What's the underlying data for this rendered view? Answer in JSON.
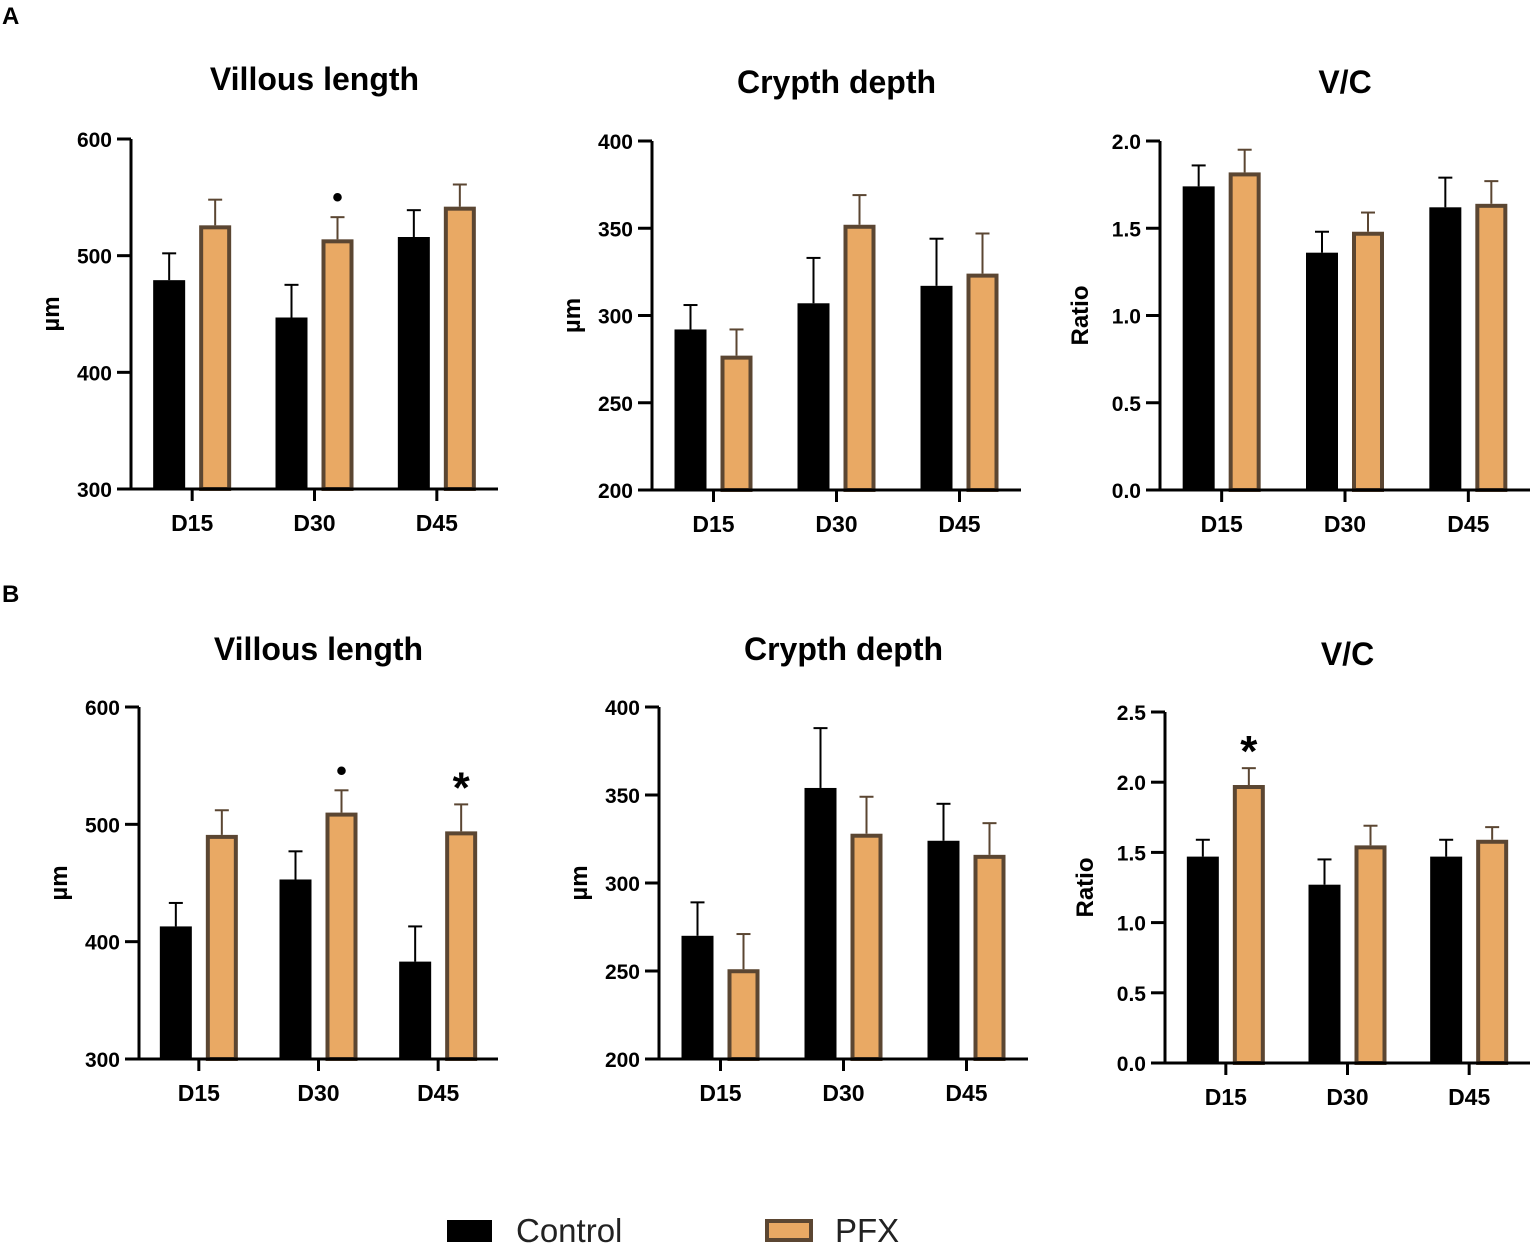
{
  "colors": {
    "control": "#000000",
    "pfx_fill": "#E9A964",
    "pfx_edge": "#5B4632",
    "axis": "#000000"
  },
  "panel_labels": [
    "A",
    "B"
  ],
  "legend": {
    "control": "Control",
    "pfx": "PFX"
  },
  "chart_data": [
    {
      "id": "A1",
      "panel": "A",
      "type": "bar",
      "title": "Villous length",
      "ylabel": "µm",
      "categories": [
        "D15",
        "D30",
        "D45"
      ],
      "ylim": [
        300,
        600
      ],
      "yticks": [
        300,
        400,
        500,
        600
      ],
      "ytick_labels": [
        "300",
        "400",
        "500",
        "600"
      ],
      "series": [
        {
          "name": "Control",
          "values": [
            479,
            447,
            516
          ],
          "errors": [
            23,
            28,
            23
          ]
        },
        {
          "name": "PFX",
          "values": [
            526,
            514,
            542
          ],
          "errors": [
            22,
            19,
            19
          ]
        }
      ],
      "annotations": [
        {
          "category_index": 1,
          "series_index": 1,
          "symbol": "•"
        }
      ]
    },
    {
      "id": "A2",
      "panel": "A",
      "type": "bar",
      "title": "Crypth depth",
      "ylabel": "µm",
      "categories": [
        "D15",
        "D30",
        "D45"
      ],
      "ylim": [
        200,
        400
      ],
      "yticks": [
        200,
        250,
        300,
        350,
        400
      ],
      "ytick_labels": [
        "200",
        "250",
        "300",
        "350",
        "400"
      ],
      "series": [
        {
          "name": "Control",
          "values": [
            292,
            307,
            317
          ],
          "errors": [
            14,
            26,
            27
          ]
        },
        {
          "name": "PFX",
          "values": [
            277,
            352,
            324
          ],
          "errors": [
            15,
            17,
            23
          ]
        }
      ],
      "annotations": []
    },
    {
      "id": "A3",
      "panel": "A",
      "type": "bar",
      "title": "V/C",
      "ylabel": "Ratio",
      "categories": [
        "D15",
        "D30",
        "D45"
      ],
      "ylim": [
        0,
        2.0
      ],
      "yticks": [
        0,
        0.5,
        1.0,
        1.5,
        2.0
      ],
      "ytick_labels": [
        "0.0",
        "0.5",
        "1.0",
        "1.5",
        "2.0"
      ],
      "series": [
        {
          "name": "Control",
          "values": [
            1.74,
            1.36,
            1.62
          ],
          "errors": [
            0.12,
            0.12,
            0.17
          ]
        },
        {
          "name": "PFX",
          "values": [
            1.82,
            1.48,
            1.64
          ],
          "errors": [
            0.13,
            0.11,
            0.13
          ]
        }
      ],
      "annotations": []
    },
    {
      "id": "B1",
      "panel": "B",
      "type": "bar",
      "title": "Villous length",
      "ylabel": "µm",
      "categories": [
        "D15",
        "D30",
        "D45"
      ],
      "ylim": [
        300,
        600
      ],
      "yticks": [
        300,
        400,
        500,
        600
      ],
      "ytick_labels": [
        "300",
        "400",
        "500",
        "600"
      ],
      "series": [
        {
          "name": "Control",
          "values": [
            413,
            453,
            383
          ],
          "errors": [
            20,
            24,
            30
          ]
        },
        {
          "name": "PFX",
          "values": [
            491,
            510,
            494
          ],
          "errors": [
            21,
            19,
            23
          ]
        }
      ],
      "annotations": [
        {
          "category_index": 1,
          "series_index": 1,
          "symbol": "•"
        },
        {
          "category_index": 2,
          "series_index": 1,
          "symbol": "*"
        }
      ]
    },
    {
      "id": "B2",
      "panel": "B",
      "type": "bar",
      "title": "Crypth depth",
      "ylabel": "µm",
      "categories": [
        "D15",
        "D30",
        "D45"
      ],
      "ylim": [
        200,
        400
      ],
      "yticks": [
        200,
        250,
        300,
        350,
        400
      ],
      "ytick_labels": [
        "200",
        "250",
        "300",
        "350",
        "400"
      ],
      "series": [
        {
          "name": "Control",
          "values": [
            270,
            354,
            324
          ],
          "errors": [
            19,
            34,
            21
          ]
        },
        {
          "name": "PFX",
          "values": [
            251,
            328,
            316
          ],
          "errors": [
            20,
            21,
            18
          ]
        }
      ],
      "annotations": []
    },
    {
      "id": "B3",
      "panel": "B",
      "type": "bar",
      "title": "V/C",
      "ylabel": "Ratio",
      "categories": [
        "D15",
        "D30",
        "D45"
      ],
      "ylim": [
        0,
        2.5
      ],
      "yticks": [
        0,
        0.5,
        1.0,
        1.5,
        2.0,
        2.5
      ],
      "ytick_labels": [
        "0.0",
        "0.5",
        "1.0",
        "1.5",
        "2.0",
        "2.5"
      ],
      "series": [
        {
          "name": "Control",
          "values": [
            1.47,
            1.27,
            1.47
          ],
          "errors": [
            0.12,
            0.18,
            0.12
          ]
        },
        {
          "name": "PFX",
          "values": [
            1.98,
            1.55,
            1.59
          ],
          "errors": [
            0.12,
            0.14,
            0.09
          ]
        }
      ],
      "annotations": [
        {
          "category_index": 0,
          "series_index": 1,
          "symbol": "*"
        }
      ]
    }
  ]
}
